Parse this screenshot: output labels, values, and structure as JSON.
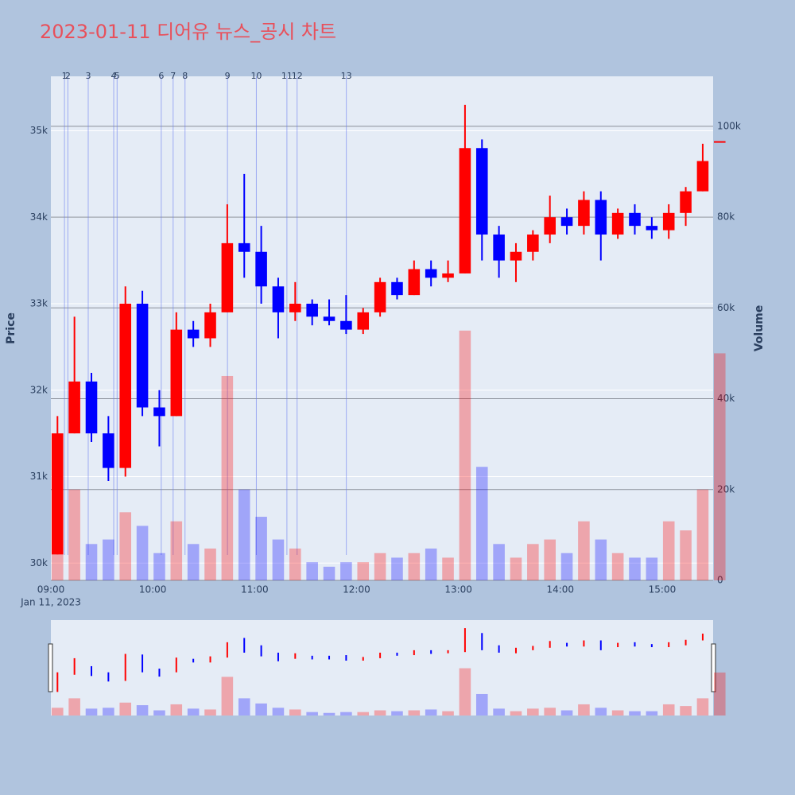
{
  "chart_data": {
    "type": "candlestick",
    "title": "2023-01-11 디어유 뉴스_공시 차트",
    "y_label": "Price",
    "y2_label": "Volume",
    "date_label": "Jan 11, 2023",
    "x": [
      "09:00",
      "09:10",
      "09:20",
      "09:30",
      "09:40",
      "09:50",
      "10:00",
      "10:10",
      "10:20",
      "10:30",
      "10:40",
      "10:50",
      "11:00",
      "11:10",
      "11:20",
      "11:30",
      "11:40",
      "11:50",
      "12:00",
      "12:10",
      "12:20",
      "12:30",
      "12:40",
      "12:50",
      "13:00",
      "13:10",
      "13:20",
      "13:30",
      "13:40",
      "13:50",
      "14:00",
      "14:10",
      "14:20",
      "14:30",
      "14:40",
      "14:50",
      "15:00",
      "15:10",
      "15:20",
      "15:30"
    ],
    "open": [
      30100,
      31500,
      32100,
      31500,
      31100,
      33000,
      31800,
      31700,
      32700,
      32600,
      32900,
      33700,
      33600,
      33200,
      32900,
      33000,
      32850,
      32800,
      32700,
      32900,
      33250,
      33100,
      33400,
      33300,
      33350,
      34800,
      33800,
      33500,
      33600,
      33800,
      34000,
      33900,
      34200,
      33800,
      34050,
      33900,
      33850,
      34050,
      34300,
      34880
    ],
    "high": [
      31700,
      32850,
      32200,
      31700,
      33200,
      33150,
      32000,
      32900,
      32800,
      33000,
      34150,
      34500,
      33900,
      33300,
      33250,
      33050,
      33050,
      33100,
      32950,
      33300,
      33300,
      33500,
      33500,
      33500,
      35300,
      34900,
      33900,
      33700,
      33850,
      34250,
      34100,
      34300,
      34300,
      34100,
      34150,
      34000,
      34150,
      34350,
      34850,
      34880
    ],
    "low": [
      30100,
      31500,
      31400,
      30950,
      31000,
      31700,
      31350,
      31700,
      32500,
      32500,
      32900,
      33300,
      33000,
      32600,
      32800,
      32750,
      32750,
      32650,
      32650,
      32850,
      33050,
      33100,
      33200,
      33250,
      33350,
      33500,
      33300,
      33250,
      33500,
      33700,
      33800,
      33800,
      33500,
      33750,
      33800,
      33750,
      33750,
      33900,
      34300,
      34880
    ],
    "close": [
      31500,
      32100,
      31500,
      31100,
      33000,
      31800,
      31700,
      32700,
      32600,
      32900,
      33700,
      33600,
      33200,
      32900,
      33000,
      32850,
      32800,
      32700,
      32900,
      33250,
      33100,
      33400,
      33300,
      33350,
      34800,
      33800,
      33500,
      33600,
      33800,
      34000,
      33900,
      34200,
      33800,
      34050,
      33900,
      33850,
      34050,
      34300,
      34650,
      34880
    ],
    "volume": [
      9000,
      20000,
      8000,
      9000,
      15000,
      12000,
      6000,
      13000,
      8000,
      7000,
      45000,
      20000,
      14000,
      9000,
      7000,
      4000,
      3000,
      4000,
      4000,
      6000,
      5000,
      6000,
      7000,
      5000,
      55000,
      25000,
      8000,
      5000,
      8000,
      9000,
      6000,
      13000,
      9000,
      6000,
      5000,
      5000,
      13000,
      11000,
      20000,
      50000
    ],
    "increasing_color": "#ff0000",
    "decreasing_color": "#0000ff",
    "xlim": [
      "09:00",
      "15:30"
    ],
    "xticks": [
      "09:00",
      "10:00",
      "11:00",
      "12:00",
      "13:00",
      "14:00",
      "15:00"
    ],
    "ylim": [
      29800,
      35630
    ],
    "yticks": [
      {
        "value": 30000,
        "label": "30k"
      },
      {
        "value": 31000,
        "label": "31k"
      },
      {
        "value": 32000,
        "label": "32k"
      },
      {
        "value": 33000,
        "label": "33k"
      },
      {
        "value": 34000,
        "label": "34k"
      },
      {
        "value": 35000,
        "label": "35k"
      }
    ],
    "y2lim": [
      0,
      111000
    ],
    "y2ticks": [
      0,
      {
        "value": 20000,
        "label": "20k"
      },
      {
        "value": 40000,
        "label": "40k"
      },
      {
        "value": 60000,
        "label": "60k"
      },
      {
        "value": 80000,
        "label": "80k"
      },
      {
        "value": 100000,
        "label": "100k"
      }
    ],
    "news": {
      "x": [
        "09:08",
        "09:10",
        "09:22",
        "09:37",
        "09:39",
        "10:05",
        "10:12",
        "10:19",
        "10:44",
        "11:01",
        "11:19",
        "11:25",
        "11:54"
      ],
      "labels": [
        "1",
        "2",
        "3",
        "4",
        "5",
        "6",
        "7",
        "8",
        "9",
        "10",
        "11",
        "12",
        "13"
      ]
    }
  }
}
